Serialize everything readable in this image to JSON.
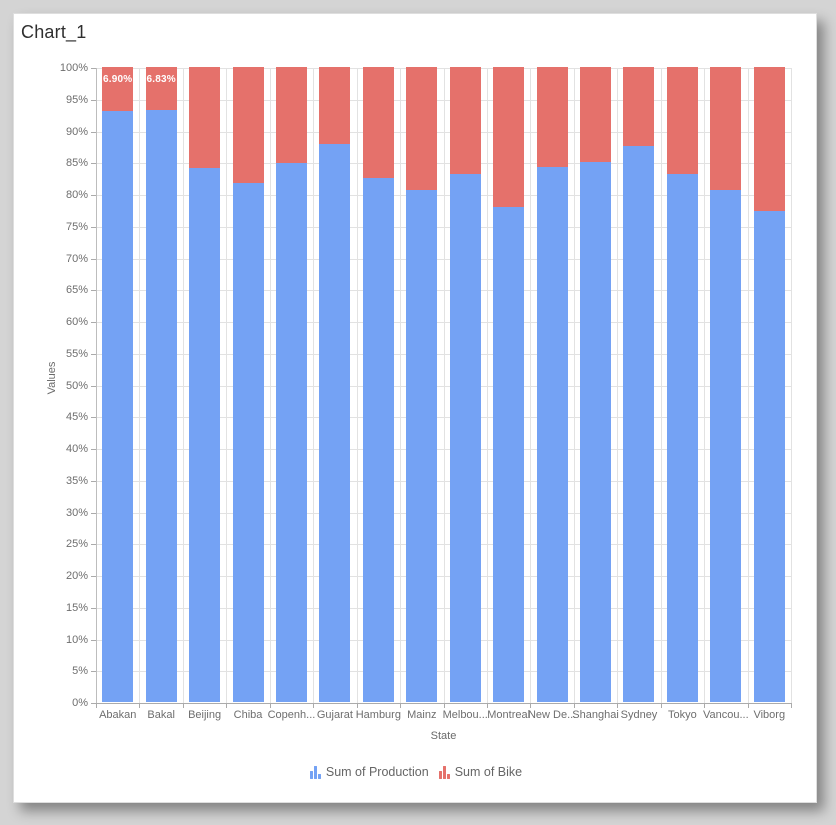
{
  "widget": {
    "title": "Chart_1"
  },
  "colors": {
    "page_background": "#D4D4D4",
    "card_background": "#FFFFFF",
    "series_production": "#74A2F4",
    "series_bike": "#E5716B",
    "gridline": "#E2E2E2",
    "axis_line": "#ABABAB",
    "tick_text": "#6E6E6E",
    "title_text": "#2F2F2F",
    "legend_text": "#666666",
    "data_label_text": "#FFFFFF"
  },
  "chart_data": {
    "type": "bar",
    "stacked": true,
    "stacking": "percent",
    "title": "Chart_1",
    "xlabel": "State",
    "ylabel": "Values",
    "ylim": [
      0,
      100
    ],
    "y_tick_step": 5,
    "grid": true,
    "legend_position": "bottom",
    "categories": [
      "Abakan",
      "Bakal",
      "Beijing",
      "Chiba",
      "Copenh...",
      "Gujarat",
      "Hamburg",
      "Mainz",
      "Melbou...",
      "Montreal",
      "New De...",
      "Shanghai",
      "Sydney",
      "Tokyo",
      "Vancou...",
      "Viborg"
    ],
    "y_ticks": [
      "0%",
      "5%",
      "10%",
      "15%",
      "20%",
      "25%",
      "30%",
      "35%",
      "40%",
      "45%",
      "50%",
      "55%",
      "60%",
      "65%",
      "70%",
      "75%",
      "80%",
      "85%",
      "90%",
      "95%",
      "100%"
    ],
    "series": [
      {
        "name": "Sum of Production",
        "color": "#74A2F4",
        "values": [
          93.1,
          93.17,
          84.1,
          81.8,
          84.9,
          87.9,
          82.5,
          80.6,
          83.2,
          78.0,
          84.2,
          85.0,
          87.5,
          83.2,
          80.6,
          77.3
        ]
      },
      {
        "name": "Sum of Bike",
        "color": "#E5716B",
        "values": [
          6.9,
          6.83,
          15.9,
          18.2,
          15.1,
          12.1,
          17.5,
          19.4,
          16.8,
          22.0,
          15.8,
          15.0,
          12.5,
          16.8,
          19.4,
          22.7
        ]
      }
    ],
    "data_labels": [
      {
        "category_index": 0,
        "series": "Sum of Bike",
        "text": "6.90%"
      },
      {
        "category_index": 1,
        "series": "Sum of Bike",
        "text": "6.83%"
      }
    ]
  }
}
